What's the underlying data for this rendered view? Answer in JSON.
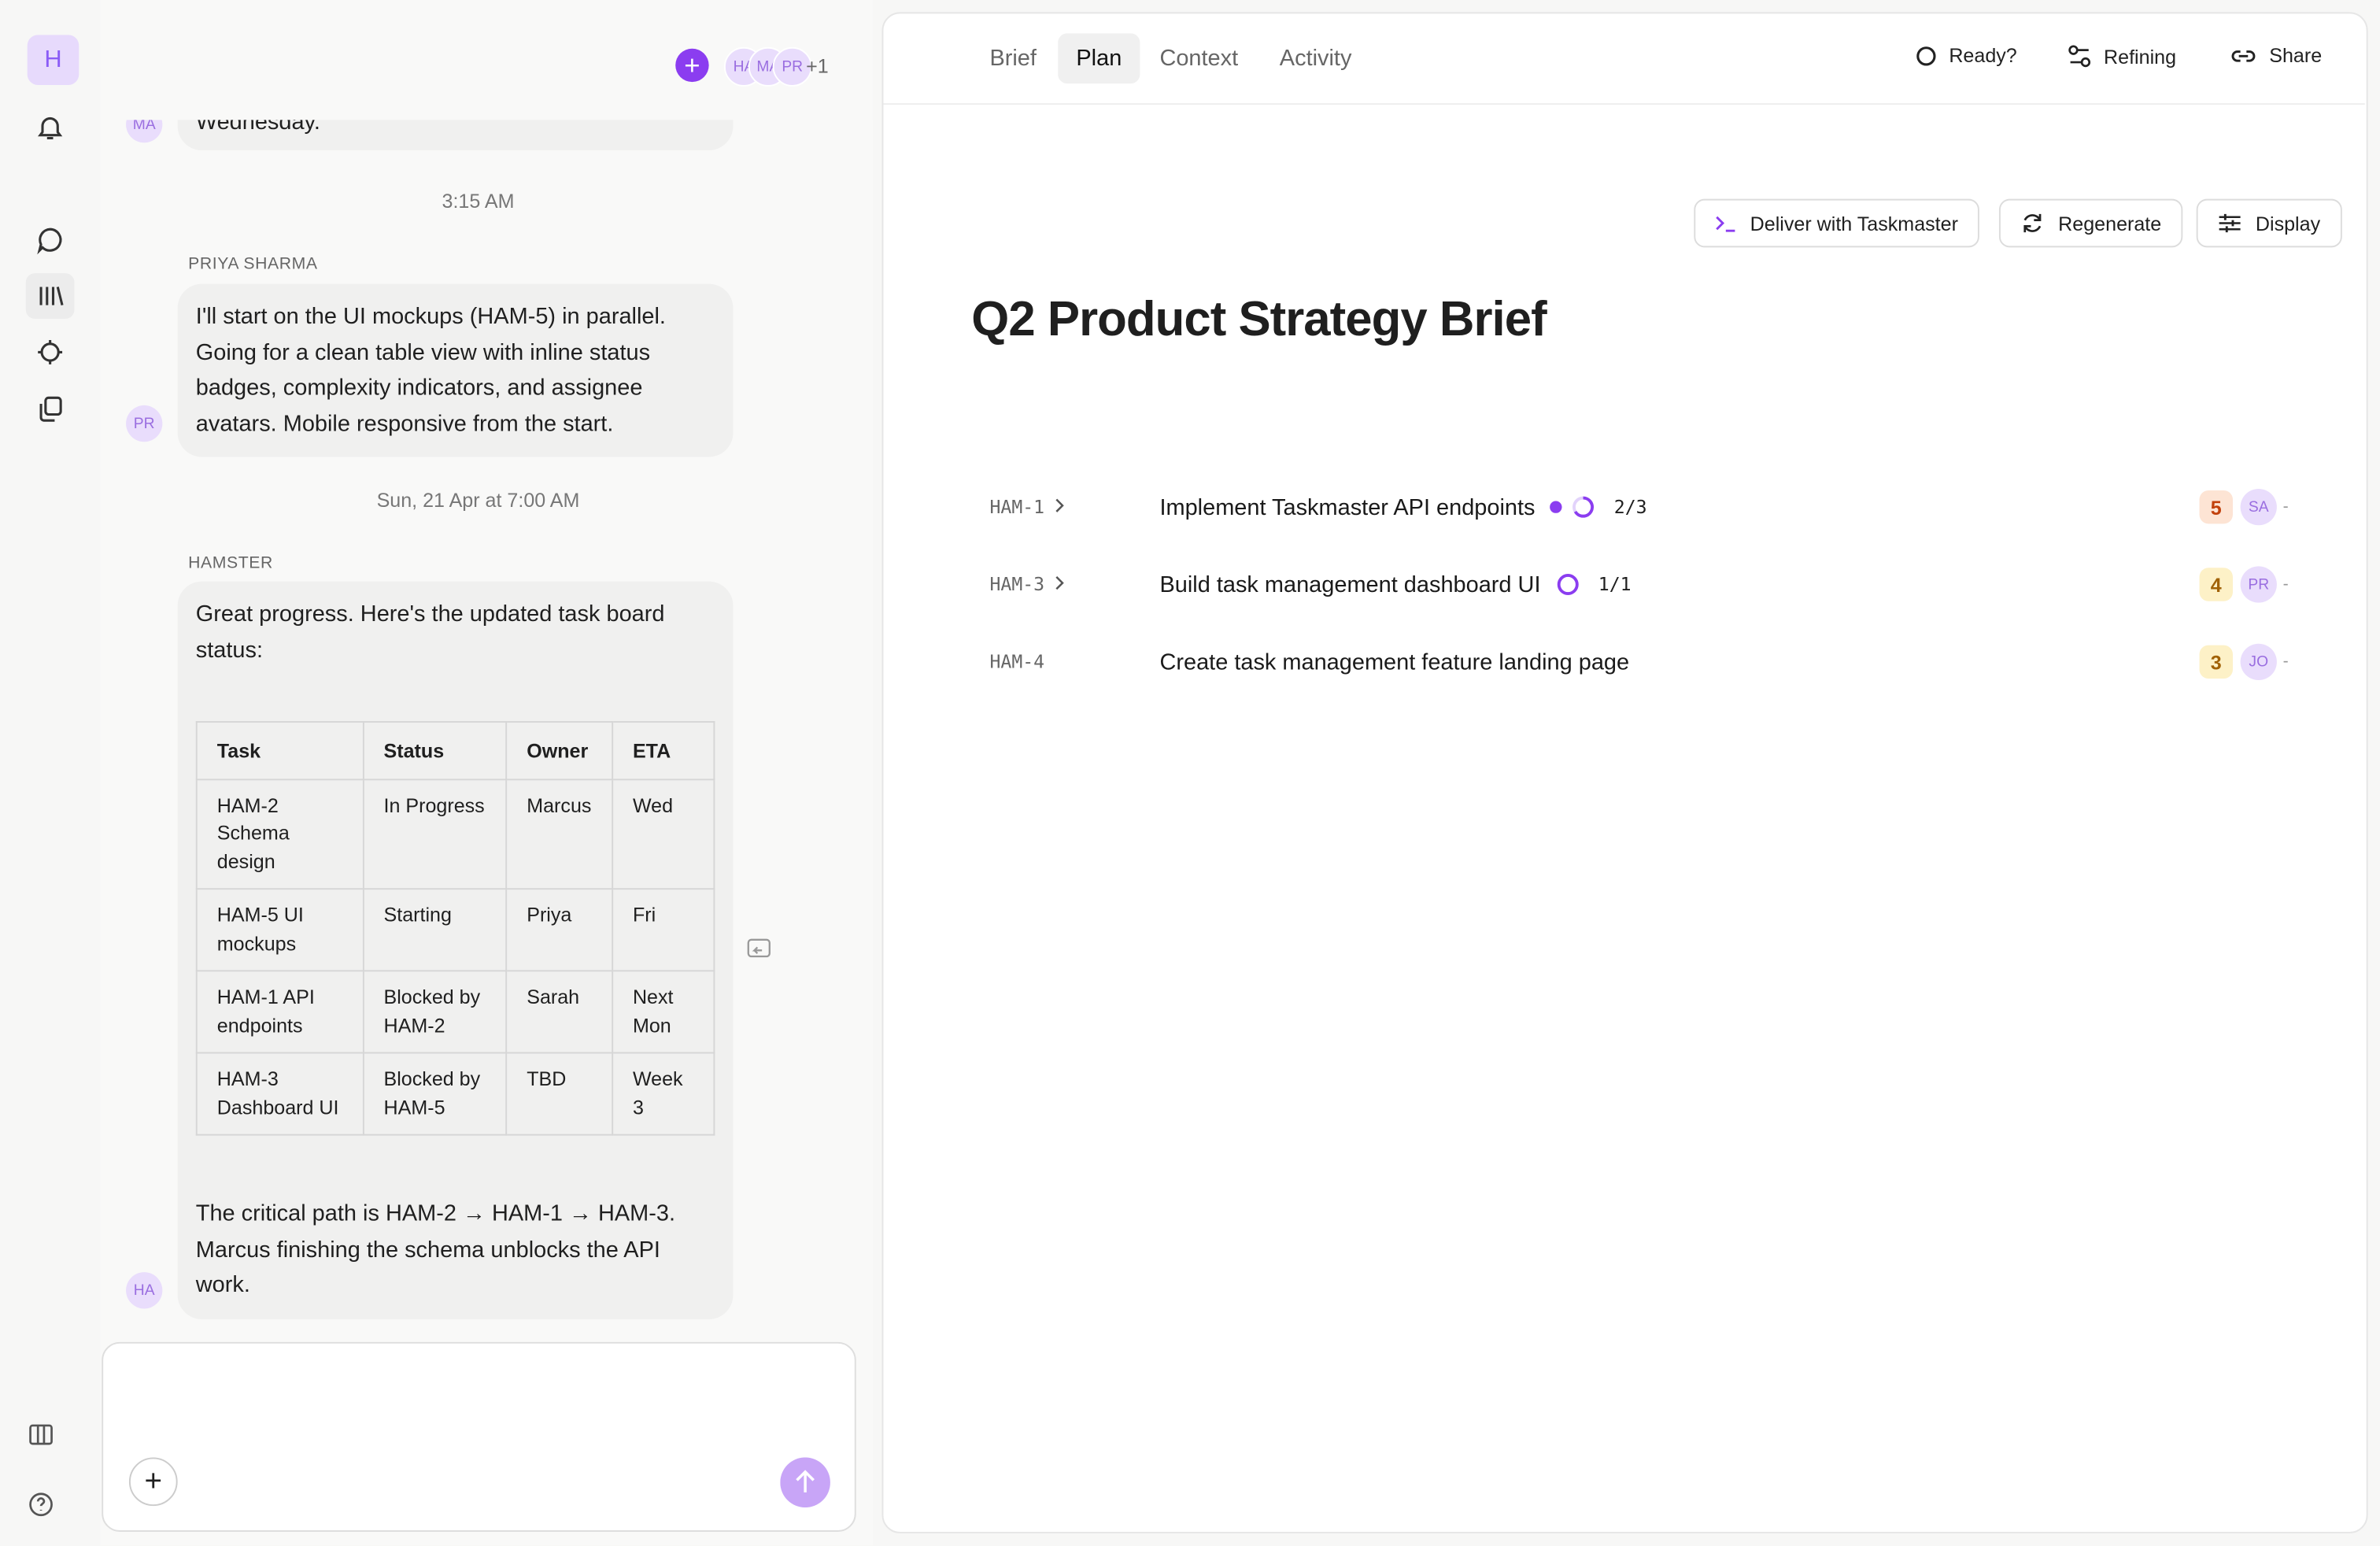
{
  "sidebar": {
    "logo": "H"
  },
  "chat_header": {
    "avatars": [
      "HA",
      "MA",
      "PR"
    ],
    "more": "+1"
  },
  "messages": [
    {
      "avatar": "MA",
      "text": "Wednesday."
    },
    {
      "time": "3:15 AM"
    },
    {
      "author": "PRIYA SHARMA",
      "avatar": "PR",
      "text": "I'll start on the UI mockups (HAM-5) in parallel. Going for a clean table view with inline status badges, complexity indicators, and assignee avatars. Mobile responsive from the start."
    },
    {
      "time": "Sun, 21 Apr at 7:00 AM"
    },
    {
      "author": "HAMSTER",
      "avatar": "HA",
      "intro": "Great progress. Here's the updated task board status:",
      "table": {
        "header": [
          "Task",
          "Status",
          "Owner",
          "ETA"
        ],
        "rows": [
          [
            "HAM-2 Schema design",
            "In Progress",
            "Marcus",
            "Wed"
          ],
          [
            "HAM-5 UI mockups",
            "Starting",
            "Priya",
            "Fri"
          ],
          [
            "HAM-1 API endpoints",
            "Blocked by HAM-2",
            "Sarah",
            "Next Mon"
          ],
          [
            "HAM-3 Dashboard UI",
            "Blocked by HAM-5",
            "TBD",
            "Week 3"
          ]
        ]
      },
      "outro": "The critical path is HAM-2 → HAM-1 → HAM-3. Marcus finishing the schema unblocks the API work."
    }
  ],
  "tabs": [
    "Brief",
    "Plan",
    "Context",
    "Activity"
  ],
  "actions": [
    "Ready?",
    "Refining",
    "Share"
  ],
  "toolbar": [
    "Deliver with Taskmaster",
    "Regenerate",
    "Display"
  ],
  "title": "Q2 Product Strategy Brief",
  "tasks": [
    {
      "id": "HAM-1",
      "title": "Implement Taskmaster API endpoints",
      "progress": "2/3",
      "complexity": "5",
      "assignee": "SA",
      "more": "-"
    },
    {
      "id": "HAM-3",
      "title": "Build task management dashboard UI",
      "progress": "1/1",
      "complexity": "4",
      "assignee": "PR",
      "more": "-"
    },
    {
      "id": "HAM-4",
      "title": "Create task management feature landing page",
      "complexity": "3",
      "assignee": "JO",
      "more": "-"
    }
  ]
}
